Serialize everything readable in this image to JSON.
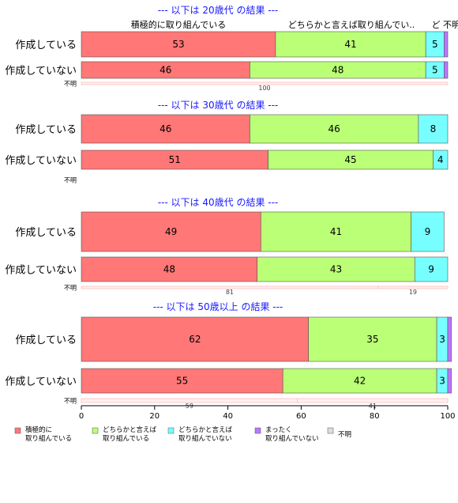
{
  "chart_data": {
    "type": "bar",
    "orientation": "horizontal",
    "stacked": true,
    "percent": true,
    "xlim": [
      0,
      100
    ],
    "xticks": [
      0,
      20,
      40,
      60,
      80,
      100
    ],
    "column_headers": [
      "積極的に取り組んでいる",
      "どちらかと言えば取り組んでい..",
      "ど",
      "不明"
    ],
    "categories": [
      {
        "key": "c1",
        "name": "積極的に\n取り組んでいる",
        "color": "#ff7777"
      },
      {
        "key": "c2",
        "name": "どちらかと言えば\n取り組んでいる",
        "color": "#bbff77"
      },
      {
        "key": "c3",
        "name": "どちらかと言えば\n取り組んでいない",
        "color": "#77ffff"
      },
      {
        "key": "c4",
        "name": "まったく\n取り組んでいない",
        "color": "#bb77ff"
      },
      {
        "key": "c5",
        "name": "不明",
        "color": "#dddddd"
      }
    ],
    "panels": [
      {
        "title": "--- 以下は 20歳代 の結果 ---",
        "rows": [
          {
            "label": "作成している",
            "values": [
              53,
              41,
              5,
              1,
              0
            ],
            "labels": [
              "53",
              "41",
              "5",
              "",
              ""
            ]
          },
          {
            "label": "作成していない",
            "values": [
              46,
              48,
              5,
              1,
              0
            ],
            "labels": [
              "46",
              "48",
              "5",
              "",
              ""
            ]
          },
          {
            "label": "不明",
            "small": true,
            "values": [
              100,
              0,
              0,
              0,
              0
            ],
            "labels": [
              "100",
              "",
              "",
              "",
              ""
            ]
          }
        ]
      },
      {
        "title": "--- 以下は 30歳代 の結果 ---",
        "rows": [
          {
            "label": "作成している",
            "values": [
              46,
              46,
              8,
              0,
              0
            ],
            "labels": [
              "46",
              "46",
              "8",
              "",
              ""
            ]
          },
          {
            "label": "作成していない",
            "values": [
              51,
              45,
              4,
              0,
              0
            ],
            "labels": [
              "51",
              "45",
              "4",
              "",
              ""
            ]
          },
          {
            "label": "不明",
            "small": true,
            "values": [
              0,
              0,
              0,
              0,
              0
            ],
            "labels": [
              "",
              "",
              "",
              "",
              ""
            ]
          }
        ]
      },
      {
        "title": "--- 以下は 40歳代 の結果 ---",
        "rows": [
          {
            "label": "作成している",
            "values": [
              49,
              41,
              9,
              0,
              0
            ],
            "labels": [
              "49",
              "41",
              "9",
              "",
              ""
            ]
          },
          {
            "label": "作成していない",
            "values": [
              48,
              43,
              9,
              0,
              0
            ],
            "labels": [
              "48",
              "43",
              "9",
              "",
              ""
            ]
          },
          {
            "label": "不明",
            "small": true,
            "values": [
              81,
              19,
              0,
              0,
              0
            ],
            "labels": [
              "81",
              "19",
              "",
              "",
              ""
            ]
          }
        ]
      },
      {
        "title": "--- 以下は 50歳以上 の結果 ---",
        "rows": [
          {
            "label": "作成している",
            "values": [
              62,
              35,
              3,
              1,
              0
            ],
            "labels": [
              "62",
              "35",
              "3",
              "",
              ""
            ]
          },
          {
            "label": "作成していない",
            "values": [
              55,
              42,
              3,
              1,
              0
            ],
            "labels": [
              "55",
              "42",
              "3",
              "",
              ""
            ]
          },
          {
            "label": "不明",
            "small": true,
            "values": [
              59,
              41,
              0,
              0,
              0
            ],
            "labels": [
              "59",
              "41",
              "",
              "",
              ""
            ]
          }
        ]
      }
    ]
  }
}
